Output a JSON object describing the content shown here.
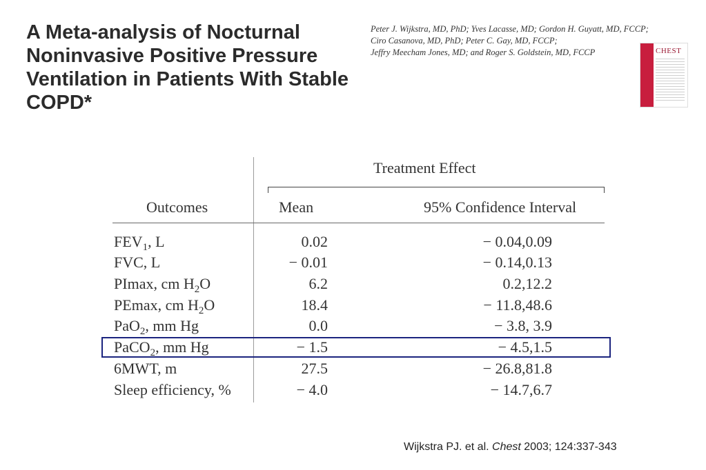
{
  "title": "A Meta-analysis of Nocturnal Noninvasive Positive Pressure Ventilation in Patients With Stable COPD*",
  "authors": [
    "Peter J. Wijkstra, MD, PhD; Yves Lacasse, MD; Gordon H. Guyatt, MD, FCCP;",
    "Ciro Casanova, MD, PhD; Peter C. Gay, MD, FCCP;",
    "Jeffry Meecham Jones, MD; and Roger S. Goldstein, MD, FCCP"
  ],
  "journal_cover": {
    "brand": "CHEST",
    "color": "#c81e3e"
  },
  "table": {
    "group_header": "Treatment Effect",
    "col_outcomes": "Outcomes",
    "col_mean": "Mean",
    "col_ci": "95% Confidence Interval",
    "rows": [
      {
        "pre": "FEV",
        "sub": "1",
        "post": ", L",
        "mean": "0.02",
        "ci": "− 0.04,0.09"
      },
      {
        "pre": "FVC, L",
        "sub": "",
        "post": "",
        "mean": "− 0.01",
        "ci": "− 0.14,0.13"
      },
      {
        "pre": "P",
        "sc": "I",
        "mid": "max, cm H",
        "sub": "2",
        "post": "O",
        "mean": "6.2",
        "ci": "0.2,12.2"
      },
      {
        "pre": "P",
        "sc": "E",
        "mid": "max, cm H",
        "sub": "2",
        "post": "O",
        "mean": "18.4",
        "ci": "− 11.8,48.6"
      },
      {
        "pre": "Pa",
        "sc": "O",
        "mid": "",
        "sub": "2",
        "post": ", mm Hg",
        "mean": "0.0",
        "ci": "− 3.8, 3.9"
      },
      {
        "pre": "Pa",
        "sc": "CO",
        "mid": "",
        "sub": "2",
        "post": ", mm Hg",
        "mean": "− 1.5",
        "ci": "− 4.5,1.5",
        "highlighted": true
      },
      {
        "pre": "6MWT, m",
        "sub": "",
        "post": "",
        "mean": "27.5",
        "ci": "− 26.8,81.8"
      },
      {
        "pre": "Sleep efficiency, %",
        "sub": "",
        "post": "",
        "mean": "− 4.0",
        "ci": "− 14.7,6.7"
      }
    ]
  },
  "citation": {
    "authors": "Wijkstra PJ. et al.",
    "journal": "Chest",
    "details": "2003; 124:337-343"
  },
  "colors": {
    "highlight_border": "#1a237e"
  }
}
